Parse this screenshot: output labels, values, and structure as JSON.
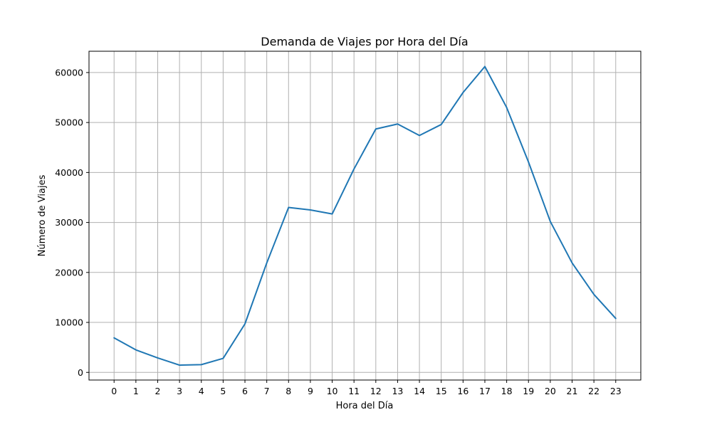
{
  "chart_data": {
    "type": "line",
    "title": "Demanda de Viajes por Hora del Día",
    "xlabel": "Hora del Día",
    "ylabel": "Número de Viajes",
    "x": [
      0,
      1,
      2,
      3,
      4,
      5,
      6,
      7,
      8,
      9,
      10,
      11,
      12,
      13,
      14,
      15,
      16,
      17,
      18,
      19,
      20,
      21,
      22,
      23
    ],
    "xtick_labels": [
      "0",
      "1",
      "2",
      "3",
      "4",
      "5",
      "6",
      "7",
      "8",
      "9",
      "10",
      "11",
      "12",
      "13",
      "14",
      "15",
      "16",
      "17",
      "18",
      "19",
      "20",
      "21",
      "22",
      "23"
    ],
    "series": [
      {
        "values": [
          6900,
          4500,
          2900,
          1450,
          1550,
          2800,
          9700,
          21900,
          33000,
          32500,
          31700,
          40700,
          48700,
          49700,
          47400,
          49600,
          56000,
          61200,
          53000,
          42100,
          30200,
          21900,
          15600,
          10800
        ],
        "color": "#1f77b4"
      }
    ],
    "yticks": [
      0,
      10000,
      20000,
      30000,
      40000,
      50000,
      60000
    ],
    "ytick_labels": [
      "0",
      "10000",
      "20000",
      "30000",
      "40000",
      "50000",
      "60000"
    ],
    "xlim": [
      -1.15,
      24.15
    ],
    "ylim": [
      -1530,
      64260
    ],
    "grid": true,
    "grid_color": "#b0b0b0",
    "axis_color": "#000000"
  }
}
